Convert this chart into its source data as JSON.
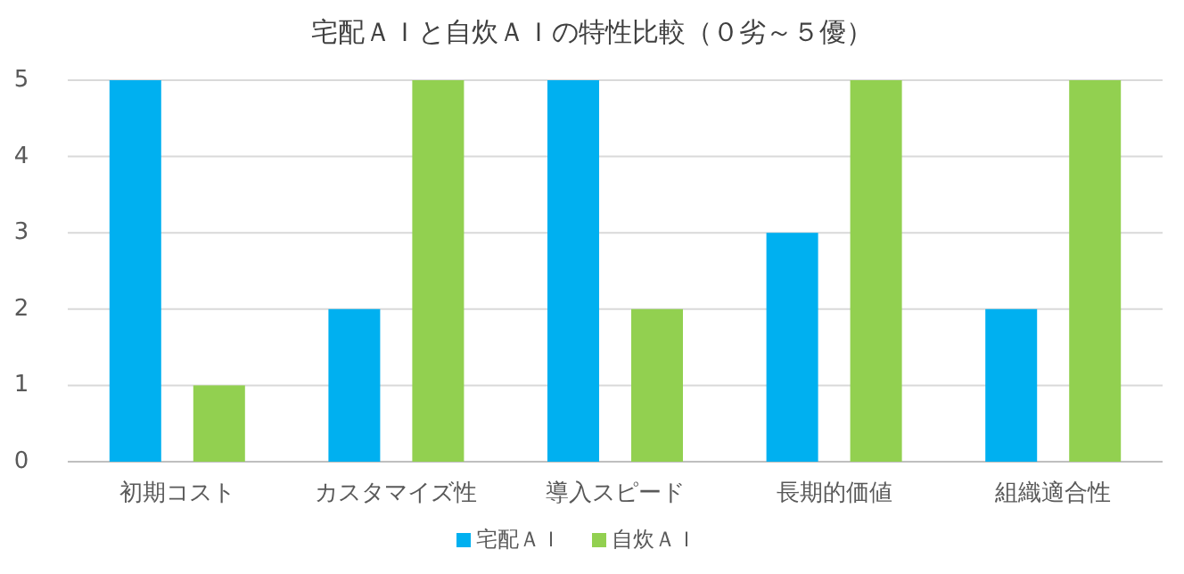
{
  "chart_data": {
    "type": "bar",
    "title": "宅配ＡＩと自炊ＡＩの特性比較（０劣～５優）",
    "categories": [
      "初期コスト",
      "カスタマイズ性",
      "導入スピード",
      "長期的価値",
      "組織適合性"
    ],
    "series": [
      {
        "name": "宅配ＡＩ",
        "color": "#00b0f0",
        "values": [
          5,
          2,
          5,
          3,
          2
        ]
      },
      {
        "name": "自炊ＡＩ",
        "color": "#92d050",
        "values": [
          1,
          5,
          2,
          5,
          5
        ]
      }
    ],
    "ylim": [
      0,
      5
    ],
    "yticks": [
      0,
      1,
      2,
      3,
      4,
      5
    ],
    "grid": "y",
    "legend": "bottom"
  }
}
